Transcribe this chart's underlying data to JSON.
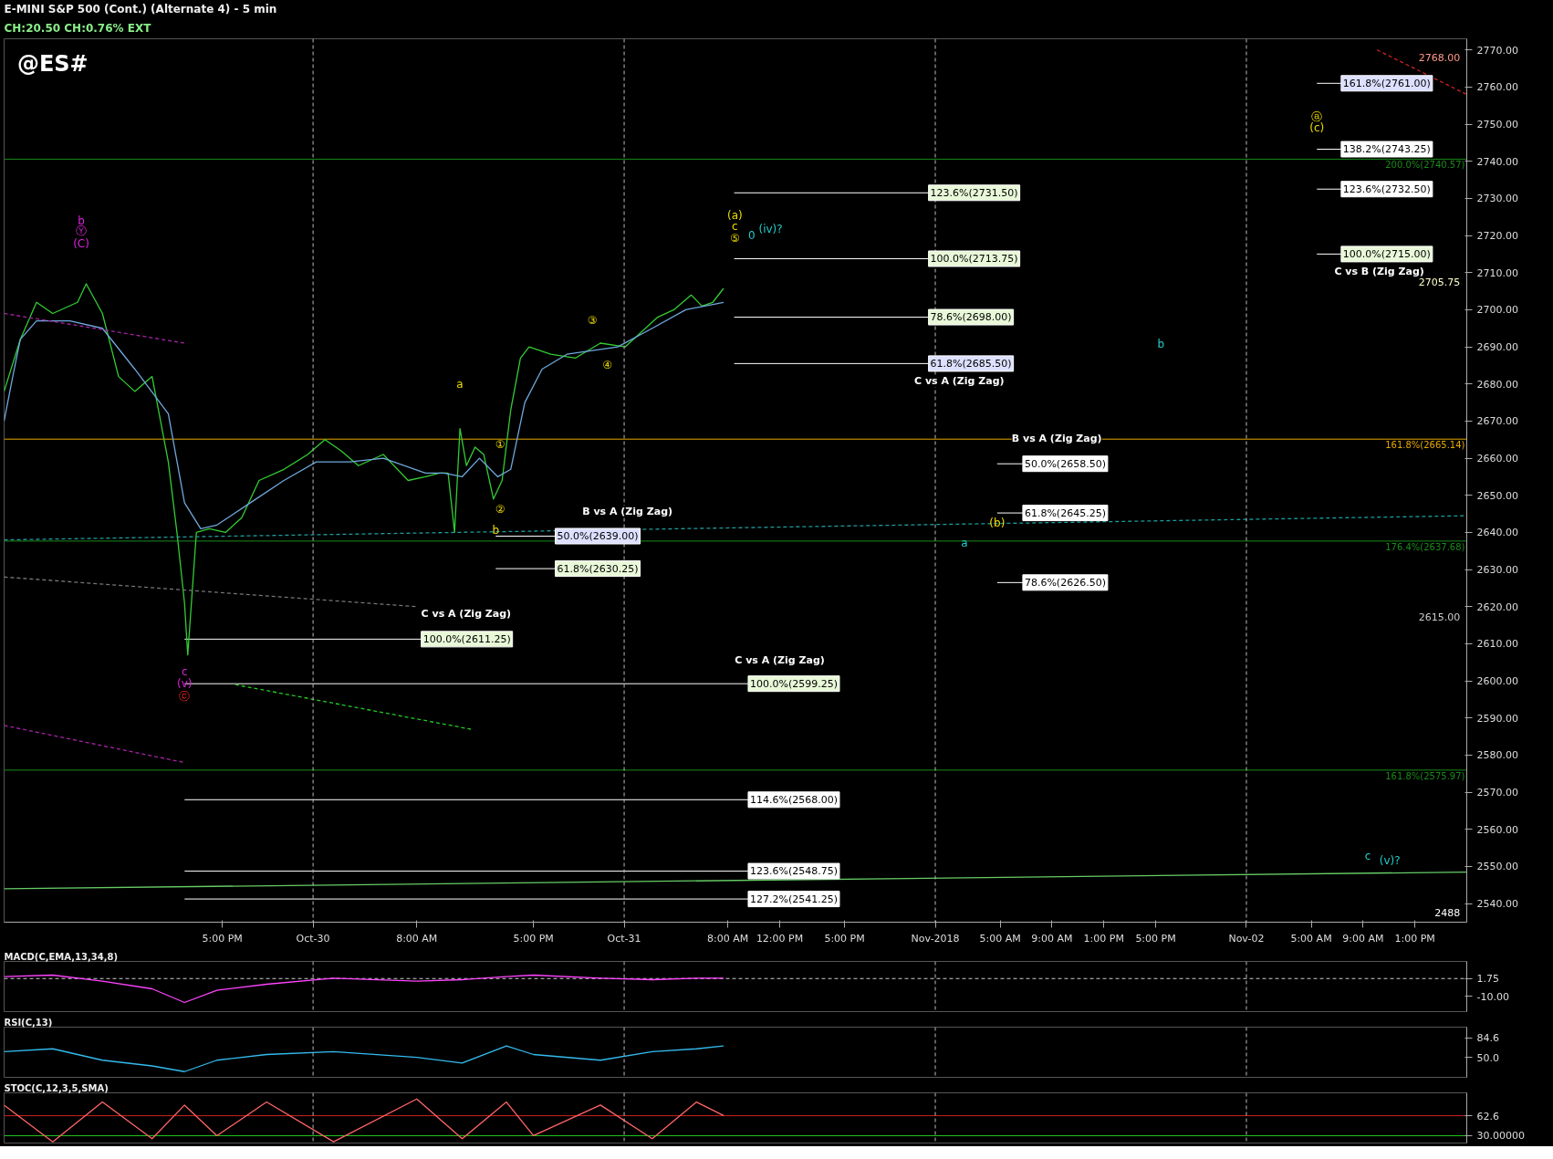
{
  "chart_data": [
    {
      "type": "line",
      "title": "E-MINI S&P 500 (Cont.) (Alternate 4) - 5 min",
      "subtitle": "CH:20.50  CH:0.76%  EXT",
      "xlim": [
        "2018-10-29T00:10",
        "2018-11-02T17:00"
      ],
      "ylim": [
        2535,
        2773
      ],
      "xticks": [
        {
          "value": "2018-10-29T17:00",
          "label": "5:00 PM"
        },
        {
          "value": "2018-10-30T00:00",
          "label": "Oct-30"
        },
        {
          "value": "2018-10-30T08:00",
          "label": "8:00 AM"
        },
        {
          "value": "2018-10-30T17:00",
          "label": "5:00 PM"
        },
        {
          "value": "2018-10-31T00:00",
          "label": "Oct-31"
        },
        {
          "value": "2018-10-31T08:00",
          "label": "8:00 AM"
        },
        {
          "value": "2018-10-31T12:00",
          "label": "12:00 PM"
        },
        {
          "value": "2018-10-31T17:00",
          "label": "5:00 PM"
        },
        {
          "value": "2018-11-01T00:00",
          "label": "Nov-2018"
        },
        {
          "value": "2018-11-01T05:00",
          "label": "5:00 AM"
        },
        {
          "value": "2018-11-01T09:00",
          "label": "9:00 AM"
        },
        {
          "value": "2018-11-01T13:00",
          "label": "1:00 PM"
        },
        {
          "value": "2018-11-01T17:00",
          "label": "5:00 PM"
        },
        {
          "value": "2018-11-02T00:00",
          "label": "Nov-02"
        },
        {
          "value": "2018-11-02T05:00",
          "label": "5:00 AM"
        },
        {
          "value": "2018-11-02T09:00",
          "label": "9:00 AM"
        },
        {
          "value": "2018-11-02T13:00",
          "label": "1:00 PM"
        }
      ],
      "yticks": [
        {
          "value": 2540,
          "label": "2540.00"
        },
        {
          "value": 2550,
          "label": "2550.00"
        },
        {
          "value": 2560,
          "label": "2560.00"
        },
        {
          "value": 2570,
          "label": "2570.00"
        },
        {
          "value": 2580,
          "label": "2580.00"
        },
        {
          "value": 2590,
          "label": "2590.00"
        },
        {
          "value": 2600,
          "label": "2600.00"
        },
        {
          "value": 2610,
          "label": "2610.00"
        },
        {
          "value": 2620,
          "label": "2620.00"
        },
        {
          "value": 2630,
          "label": "2630.00"
        },
        {
          "value": 2640,
          "label": "2640.00"
        },
        {
          "value": 2650,
          "label": "2650.00"
        },
        {
          "value": 2660,
          "label": "2660.00"
        },
        {
          "value": 2670,
          "label": "2670.00"
        },
        {
          "value": 2680,
          "label": "2680.00"
        },
        {
          "value": 2690,
          "label": "2690.00"
        },
        {
          "value": 2700,
          "label": "2700.00"
        },
        {
          "value": 2710,
          "label": "2710.00"
        },
        {
          "value": 2720,
          "label": "2720.00"
        },
        {
          "value": 2730,
          "label": "2730.00"
        },
        {
          "value": 2740,
          "label": "2740.00"
        },
        {
          "value": 2750,
          "label": "2750.00"
        },
        {
          "value": 2760,
          "label": "2760.00"
        },
        {
          "value": 2770,
          "label": "2770.00"
        }
      ],
      "series": [
        {
          "color": "#33cc33",
          "x": [
            "2018-10-29T00:10",
            "2018-10-29T01:25",
            "2018-10-29T02:40",
            "2018-10-29T03:55",
            "2018-10-29T05:50",
            "2018-10-29T06:30",
            "2018-10-29T07:45",
            "2018-10-29T09:00",
            "2018-10-29T10:15",
            "2018-10-29T11:35",
            "2018-10-29T12:50",
            "2018-10-29T13:30",
            "2018-10-29T14:05",
            "2018-10-29T14:20",
            "2018-10-29T15:00",
            "2018-10-29T16:00",
            "2018-10-29T17:15",
            "2018-10-29T18:30",
            "2018-10-29T19:50",
            "2018-10-29T21:45",
            "2018-10-29T23:35",
            "2018-10-30T00:55",
            "2018-10-30T02:10",
            "2018-10-30T03:30",
            "2018-10-30T05:25",
            "2018-10-30T07:20",
            "2018-10-30T08:40",
            "2018-10-30T09:45",
            "2018-10-30T10:25",
            "2018-10-30T10:55",
            "2018-10-30T11:20",
            "2018-10-30T11:50",
            "2018-10-30T12:30",
            "2018-10-30T13:10",
            "2018-10-30T13:55",
            "2018-10-30T14:35",
            "2018-10-30T15:15",
            "2018-10-30T16:00",
            "2018-10-30T16:40",
            "2018-10-30T18:20",
            "2018-10-30T20:15",
            "2018-10-30T22:10",
            "2018-10-31T00:05",
            "2018-10-31T01:20",
            "2018-10-31T02:35",
            "2018-10-31T03:50",
            "2018-10-31T05:10",
            "2018-10-31T06:00",
            "2018-10-31T06:50",
            "2018-10-31T07:40"
          ],
          "values": [
            2678,
            2692,
            2702,
            2699,
            2702,
            2707,
            2699,
            2682,
            2678,
            2682,
            2659,
            2640,
            2621,
            2607,
            2640,
            2641,
            2640,
            2644,
            2654,
            2657,
            2661,
            2665,
            2662,
            2658,
            2661,
            2654,
            2655,
            2656,
            2656,
            2640,
            2668,
            2658,
            2663,
            2661,
            2649,
            2654,
            2673,
            2687,
            2690,
            2688,
            2687,
            2691,
            2690,
            2694,
            2698,
            2700,
            2704,
            2701,
            2702,
            2705.75
          ]
        },
        {
          "color": "#6fa8dc",
          "x": [
            "2018-10-29T00:10",
            "2018-10-29T00:50",
            "2018-10-29T01:25",
            "2018-10-29T02:40",
            "2018-10-29T05:15",
            "2018-10-29T07:45",
            "2018-10-29T10:15",
            "2018-10-29T12:50",
            "2018-10-29T14:05",
            "2018-10-29T15:20",
            "2018-10-29T16:35",
            "2018-10-29T19:10",
            "2018-10-29T21:45",
            "2018-10-30T00:15",
            "2018-10-30T02:50",
            "2018-10-30T05:25",
            "2018-10-30T08:40",
            "2018-10-30T10:05",
            "2018-10-30T11:30",
            "2018-10-30T12:50",
            "2018-10-30T14:15",
            "2018-10-30T15:15",
            "2018-10-30T16:20",
            "2018-10-30T17:40",
            "2018-10-30T19:35",
            "2018-10-30T23:30",
            "2018-10-31T02:10",
            "2018-10-31T04:45",
            "2018-10-31T07:40"
          ],
          "values": [
            2670,
            2682,
            2692,
            2697,
            2697,
            2695,
            2684,
            2672,
            2648,
            2641,
            2642,
            2648,
            2654,
            2659,
            2659,
            2660,
            2656,
            2656,
            2655,
            2660,
            2655,
            2657,
            2675,
            2684,
            2688,
            2690,
            2695,
            2700,
            2702
          ]
        },
        {
          "color": "#1f9a9a",
          "line_style": "dashed",
          "x": [
            "2018-10-29T00:10",
            "2018-11-02T17:00"
          ],
          "values": [
            2638,
            2644.5
          ]
        },
        {
          "color": "#66cc66",
          "line_style": "solid",
          "x": [
            "2018-10-29T00:10",
            "2018-11-02T17:00"
          ],
          "values": [
            2544,
            2548.5
          ]
        },
        {
          "color": "#cc2222",
          "line_style": "dashed",
          "x": [
            "2018-11-02T10:05",
            "2018-11-02T17:00"
          ],
          "values": [
            2770,
            2758
          ]
        },
        {
          "color": "#aa22aa",
          "line_style": "dashed",
          "x": [
            "2018-10-29T00:10",
            "2018-10-29T14:05"
          ],
          "values": [
            2699,
            2691
          ]
        },
        {
          "color": "#aa22aa",
          "line_style": "dashed",
          "x": [
            "2018-10-29T00:10",
            "2018-10-29T14:05"
          ],
          "values": [
            2588,
            2578
          ]
        },
        {
          "color": "#777777",
          "line_style": "dashed",
          "x": [
            "2018-10-29T00:10",
            "2018-10-30T08:00"
          ],
          "values": [
            2628,
            2620
          ]
        },
        {
          "color": "#22cc22",
          "line_style": "dashed",
          "x": [
            "2018-10-29T18:00",
            "2018-10-30T12:10"
          ],
          "values": [
            2599,
            2587
          ]
        }
      ],
      "ref_lines": [
        {
          "axis": "x",
          "value": "2018-10-30T00:00",
          "color": "#bbbbbb",
          "line_style": "dashed"
        },
        {
          "axis": "x",
          "value": "2018-10-31T00:00",
          "color": "#bbbbbb",
          "line_style": "dashed"
        },
        {
          "axis": "x",
          "value": "2018-11-01T00:00",
          "color": "#bbbbbb",
          "line_style": "dashed"
        },
        {
          "axis": "x",
          "value": "2018-11-02T00:00",
          "color": "#bbbbbb",
          "line_style": "dashed"
        },
        {
          "axis": "y",
          "value": 2740.57,
          "label": "200.0%(2740.57)",
          "color": "#1a8a1a"
        },
        {
          "axis": "y",
          "value": 2665.14,
          "label": "161.8%(2665.14)",
          "color": "#e6a800"
        },
        {
          "axis": "y",
          "value": 2637.68,
          "label": "176.4%(2637.68)",
          "color": "#1a8a1a"
        },
        {
          "axis": "y",
          "value": 2575.97,
          "label": "161.8%(2575.97)",
          "color": "#1a8a1a"
        },
        {
          "axis": "y",
          "value": 2731.5,
          "label": "123.6%(2731.50)",
          "color": "#ffffff"
        },
        {
          "axis": "y",
          "value": 2713.75,
          "label": "100.0%(2713.75)",
          "color": "#ffffff"
        },
        {
          "axis": "y",
          "value": 2698,
          "label": "78.6%(2698.00)",
          "color": "#ffffff"
        },
        {
          "axis": "y",
          "value": 2685.5,
          "label": "61.8%(2685.50)",
          "color": "#ffffff"
        },
        {
          "axis": "y",
          "value": 2761,
          "label": "161.8%(2761.00)",
          "color": "#ffffff"
        },
        {
          "axis": "y",
          "value": 2743.25,
          "label": "138.2%(2743.25)",
          "color": "#ffffff"
        },
        {
          "axis": "y",
          "value": 2732.5,
          "label": "123.6%(2732.50)",
          "color": "#ffffff"
        },
        {
          "axis": "y",
          "value": 2715,
          "label": "100.0%(2715.00)",
          "color": "#ffffff"
        },
        {
          "axis": "y",
          "value": 2658.5,
          "label": "50.0%(2658.50)",
          "color": "#ffffff"
        },
        {
          "axis": "y",
          "value": 2645.25,
          "label": "61.8%(2645.25)",
          "color": "#ffffff"
        },
        {
          "axis": "y",
          "value": 2626.5,
          "label": "78.6%(2626.50)",
          "color": "#ffffff"
        },
        {
          "axis": "y",
          "value": 2639,
          "label": "50.0%(2639.00)",
          "color": "#ffffff"
        },
        {
          "axis": "y",
          "value": 2630.25,
          "label": "61.8%(2630.25)",
          "color": "#ffffff"
        },
        {
          "axis": "y",
          "value": 2611.25,
          "label": "100.0%(2611.25)",
          "color": "#ffffff"
        },
        {
          "axis": "y",
          "value": 2599.25,
          "label": "100.0%(2599.25)",
          "color": "#ffffff"
        },
        {
          "axis": "y",
          "value": 2568,
          "label": "114.6%(2568.00)",
          "color": "#ffffff"
        },
        {
          "axis": "y",
          "value": 2548.75,
          "label": "123.6%(2548.75)",
          "color": "#ffffff"
        },
        {
          "axis": "y",
          "value": 2541.25,
          "label": "127.2%(2541.25)",
          "color": "#ffffff"
        }
      ],
      "annotations": [
        "@ES#",
        "2768.00",
        "2705.75",
        "2615.00",
        "2488",
        "C vs A (Zig Zag)",
        "C vs B (Zig Zag)",
        "B vs A (Zig Zag)",
        "B vs A (Zig Zag)",
        "C vs A (Zig Zag)",
        "C vs A (Zig Zag)",
        "b",
        "Ⓨ",
        "(C)",
        "a",
        "①",
        "②",
        "b",
        "③",
        "④",
        "(a)",
        "c",
        "⑤",
        "0",
        "(iv)?",
        "b",
        "a",
        "(b)",
        "ⓐ",
        "(c)",
        "c",
        "(v)?",
        "c",
        "(v)",
        "ⓒ"
      ]
    },
    {
      "type": "line",
      "title": "MACD(C,EMA,13,34,8)",
      "xlim": [
        "2018-10-29T00:10",
        "2018-11-02T17:00"
      ],
      "ylim": [
        -20,
        13
      ],
      "tick_labels": "y",
      "yticks": [
        {
          "value": 1.75,
          "label": "1.75"
        },
        {
          "value": -10,
          "label": "-10.00"
        }
      ],
      "ref_lines": [
        {
          "axis": "y",
          "value": 1.75,
          "color": "#cccccc",
          "line_style": "dashed"
        },
        {
          "axis": "x",
          "value": "2018-10-30T00:00",
          "color": "#bbbbbb",
          "line_style": "dashed"
        },
        {
          "axis": "x",
          "value": "2018-10-31T00:00",
          "color": "#bbbbbb",
          "line_style": "dashed"
        },
        {
          "axis": "x",
          "value": "2018-11-01T00:00",
          "color": "#bbbbbb",
          "line_style": "dashed"
        },
        {
          "axis": "x",
          "value": "2018-11-02T00:00",
          "color": "#bbbbbb",
          "line_style": "dashed"
        }
      ],
      "series": [
        {
          "color": "#ff44ff",
          "x": [
            "2018-10-29T00:10",
            "2018-10-29T03:55",
            "2018-10-29T07:45",
            "2018-10-29T11:35",
            "2018-10-29T14:05",
            "2018-10-29T16:35",
            "2018-10-29T20:25",
            "2018-10-30T01:35",
            "2018-10-30T08:00",
            "2018-10-30T11:30",
            "2018-10-30T14:55",
            "2018-10-30T17:00",
            "2018-10-30T22:10",
            "2018-10-31T02:10",
            "2018-10-31T05:35",
            "2018-10-31T07:40"
          ],
          "values": [
            3,
            4,
            0,
            -5,
            -14,
            -6,
            -2,
            2,
            0,
            1,
            3,
            4,
            2,
            1,
            2,
            2
          ]
        }
      ]
    },
    {
      "type": "line",
      "title": "RSI(C,13)",
      "xlim": [
        "2018-10-29T00:10",
        "2018-11-02T17:00"
      ],
      "ylim": [
        15,
        103
      ],
      "tick_labels": "y",
      "yticks": [
        {
          "value": 84.6,
          "label": "84.6"
        },
        {
          "value": 50.0,
          "label": "50.0"
        }
      ],
      "ref_lines": [
        {
          "axis": "x",
          "value": "2018-10-30T00:00",
          "color": "#bbbbbb",
          "line_style": "dashed"
        },
        {
          "axis": "x",
          "value": "2018-10-31T00:00",
          "color": "#bbbbbb",
          "line_style": "dashed"
        },
        {
          "axis": "x",
          "value": "2018-11-01T00:00",
          "color": "#bbbbbb",
          "line_style": "dashed"
        },
        {
          "axis": "x",
          "value": "2018-11-02T00:00",
          "color": "#bbbbbb",
          "line_style": "dashed"
        }
      ],
      "series": [
        {
          "color": "#33bbee",
          "x": [
            "2018-10-29T00:10",
            "2018-10-29T03:55",
            "2018-10-29T07:45",
            "2018-10-29T11:35",
            "2018-10-29T14:05",
            "2018-10-29T16:35",
            "2018-10-29T20:25",
            "2018-10-30T01:35",
            "2018-10-30T08:00",
            "2018-10-30T11:30",
            "2018-10-30T14:55",
            "2018-10-30T17:00",
            "2018-10-30T22:10",
            "2018-10-31T02:10",
            "2018-10-31T05:35",
            "2018-10-31T07:40"
          ],
          "values": [
            60,
            65,
            45,
            35,
            25,
            45,
            55,
            60,
            50,
            40,
            70,
            55,
            45,
            60,
            65,
            70
          ]
        }
      ]
    },
    {
      "type": "line",
      "title": "STOC(C,12,3,5,SMA)",
      "xlim": [
        "2018-10-29T00:10",
        "2018-11-02T17:00"
      ],
      "ylim": [
        18,
        100
      ],
      "tick_labels": "y",
      "yticks": [
        {
          "value": 62.6,
          "label": "62.6"
        },
        {
          "value": 30,
          "label": "30.00000"
        }
      ],
      "ref_lines": [
        {
          "axis": "y",
          "value": 62.6,
          "color": "#cc2222"
        },
        {
          "axis": "y",
          "value": 30,
          "color": "#22cc22"
        },
        {
          "axis": "x",
          "value": "2018-10-30T00:00",
          "color": "#bbbbbb",
          "line_style": "dashed"
        },
        {
          "axis": "x",
          "value": "2018-10-31T00:00",
          "color": "#bbbbbb",
          "line_style": "dashed"
        },
        {
          "axis": "x",
          "value": "2018-11-01T00:00",
          "color": "#bbbbbb",
          "line_style": "dashed"
        },
        {
          "axis": "x",
          "value": "2018-11-02T00:00",
          "color": "#bbbbbb",
          "line_style": "dashed"
        }
      ],
      "series": [
        {
          "color": "#ff6666",
          "x": [
            "2018-10-29T00:10",
            "2018-10-29T03:55",
            "2018-10-29T07:45",
            "2018-10-29T11:35",
            "2018-10-29T14:05",
            "2018-10-29T16:35",
            "2018-10-29T20:25",
            "2018-10-30T01:35",
            "2018-10-30T08:00",
            "2018-10-30T11:30",
            "2018-10-30T14:55",
            "2018-10-30T17:00",
            "2018-10-30T22:10",
            "2018-10-31T02:10",
            "2018-10-31T05:35",
            "2018-10-31T07:40"
          ],
          "values": [
            80,
            20,
            85,
            25,
            80,
            30,
            85,
            20,
            90,
            25,
            85,
            30,
            80,
            25,
            85,
            63
          ]
        }
      ]
    }
  ]
}
